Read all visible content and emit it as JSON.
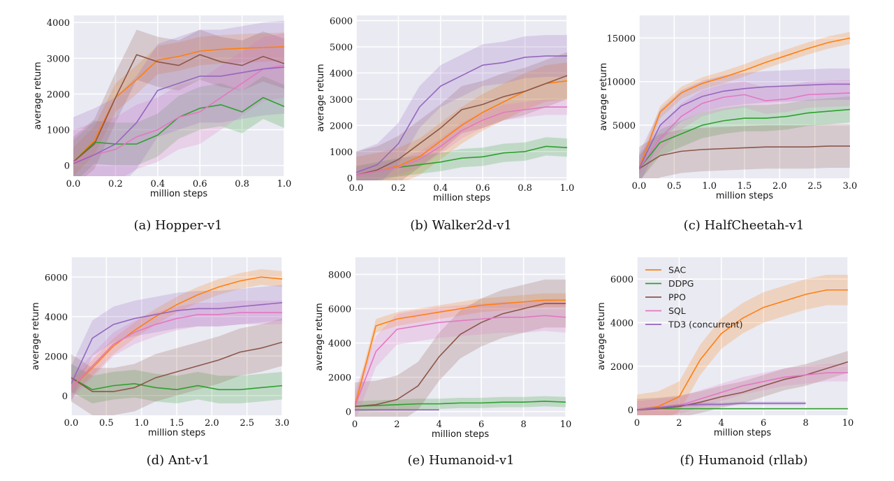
{
  "series_colors": {
    "SAC": "#ff7f0e",
    "DDPG": "#2ca02c",
    "PPO": "#8c564b",
    "SQL": "#e377c2",
    "TD3 (concurrent)": "#9467bd"
  },
  "plot_background": "#eaeaf2",
  "chart_data": [
    {
      "type": "line",
      "caption": "(a) Hopper-v1",
      "xlabel": "million steps",
      "ylabel": "average return",
      "xlim": [
        0,
        1
      ],
      "ylim": [
        -300,
        4200
      ],
      "xticks": [
        0.0,
        0.2,
        0.4,
        0.6,
        0.8,
        1.0
      ],
      "xtick_labels": [
        "0.0",
        "0.2",
        "0.4",
        "0.6",
        "0.8",
        "1.0"
      ],
      "yticks": [
        0,
        1000,
        2000,
        3000,
        4000
      ],
      "ytick_labels": [
        "0",
        "1000",
        "2000",
        "3000",
        "4000"
      ],
      "grid": true,
      "x": [
        0,
        0.1,
        0.2,
        0.3,
        0.4,
        0.5,
        0.6,
        0.7,
        0.8,
        0.9,
        1.0
      ],
      "series": [
        {
          "name": "SAC",
          "values": [
            100,
            700,
            1900,
            2400,
            2950,
            3050,
            3200,
            3250,
            3280,
            3300,
            3320
          ],
          "band": 400
        },
        {
          "name": "DDPG",
          "values": [
            100,
            650,
            600,
            600,
            850,
            1350,
            1600,
            1700,
            1500,
            1900,
            1650
          ],
          "band": 600
        },
        {
          "name": "PPO",
          "values": [
            100,
            600,
            1900,
            3100,
            2900,
            2800,
            3100,
            2900,
            2800,
            3050,
            2850
          ],
          "band": 700
        },
        {
          "name": "SQL",
          "values": [
            100,
            300,
            450,
            800,
            1000,
            1350,
            1500,
            1900,
            2300,
            2700,
            2800
          ],
          "band": 900
        },
        {
          "name": "TD3 (concurrent)",
          "values": [
            50,
            300,
            600,
            1200,
            2100,
            2300,
            2500,
            2500,
            2600,
            2700,
            2750
          ],
          "band": 1300
        }
      ]
    },
    {
      "type": "line",
      "caption": "(b) Walker2d-v1",
      "xlabel": "million steps",
      "ylabel": "average return",
      "xlim": [
        0,
        1
      ],
      "ylim": [
        -100,
        6200
      ],
      "xticks": [
        0.0,
        0.2,
        0.4,
        0.6,
        0.8,
        1.0
      ],
      "xtick_labels": [
        "0.0",
        "0.2",
        "0.4",
        "0.6",
        "0.8",
        "1.0"
      ],
      "yticks": [
        0,
        1000,
        2000,
        3000,
        4000,
        5000,
        6000
      ],
      "ytick_labels": [
        "0",
        "1000",
        "2000",
        "3000",
        "4000",
        "5000",
        "6000"
      ],
      "grid": true,
      "x": [
        0,
        0.1,
        0.2,
        0.3,
        0.4,
        0.5,
        0.6,
        0.7,
        0.8,
        0.9,
        1.0
      ],
      "series": [
        {
          "name": "SAC",
          "values": [
            100,
            250,
            450,
            800,
            1400,
            2000,
            2500,
            2900,
            3300,
            3600,
            3700
          ],
          "band": 700
        },
        {
          "name": "DDPG",
          "values": [
            100,
            250,
            400,
            500,
            600,
            750,
            800,
            950,
            1000,
            1200,
            1150
          ],
          "band": 350
        },
        {
          "name": "PPO",
          "values": [
            100,
            300,
            700,
            1300,
            1900,
            2600,
            2800,
            3100,
            3300,
            3600,
            3900
          ],
          "band": 900
        },
        {
          "name": "SQL",
          "values": [
            100,
            250,
            400,
            700,
            1200,
            1800,
            2200,
            2500,
            2600,
            2700,
            2700
          ],
          "band": 300
        },
        {
          "name": "TD3 (concurrent)",
          "values": [
            200,
            500,
            1300,
            2700,
            3500,
            3900,
            4300,
            4400,
            4600,
            4650,
            4650
          ],
          "band": 800
        }
      ]
    },
    {
      "type": "line",
      "caption": "(c) HalfCheetah-v1",
      "xlabel": "million steps",
      "ylabel": "average return",
      "xlim": [
        0,
        3
      ],
      "ylim": [
        -1100,
        17600
      ],
      "xticks": [
        0,
        0.5,
        1,
        1.5,
        2,
        2.5,
        3
      ],
      "xtick_labels": [
        "0.0",
        "0.5",
        "1.0",
        "1.5",
        "2.0",
        "2.5",
        "3.0"
      ],
      "yticks": [
        5000,
        10000,
        15000
      ],
      "ytick_labels": [
        "5000",
        "10000",
        "15000"
      ],
      "grid": true,
      "x": [
        0,
        0.3,
        0.6,
        0.9,
        1.2,
        1.5,
        1.8,
        2.1,
        2.4,
        2.7,
        3.0
      ],
      "series": [
        {
          "name": "SAC",
          "values": [
            0,
            6500,
            8700,
            9800,
            10500,
            11300,
            12200,
            13000,
            13800,
            14500,
            15000
          ],
          "band": 700
        },
        {
          "name": "DDPG",
          "values": [
            0,
            3000,
            4000,
            5000,
            5500,
            5800,
            5800,
            6000,
            6400,
            6600,
            6800
          ],
          "band": 1500
        },
        {
          "name": "PPO",
          "values": [
            0,
            1500,
            2000,
            2200,
            2300,
            2400,
            2500,
            2500,
            2500,
            2600,
            2600
          ],
          "band": 2500
        },
        {
          "name": "SQL",
          "values": [
            0,
            3500,
            6000,
            7500,
            8200,
            8500,
            7800,
            8000,
            8500,
            8600,
            8700
          ],
          "band": 1500
        },
        {
          "name": "TD3 (concurrent)",
          "values": [
            0,
            5000,
            7200,
            8300,
            8900,
            9200,
            9400,
            9500,
            9600,
            9700,
            9700
          ],
          "band": 1800
        }
      ]
    },
    {
      "type": "line",
      "caption": "(d) Ant-v1",
      "xlabel": "million steps",
      "ylabel": "average return",
      "xlim": [
        0,
        3
      ],
      "ylim": [
        -1000,
        7000
      ],
      "xticks": [
        0,
        0.5,
        1,
        1.5,
        2,
        2.5,
        3
      ],
      "xtick_labels": [
        "0.0",
        "0.5",
        "1.0",
        "1.5",
        "2.0",
        "2.5",
        "3.0"
      ],
      "yticks": [
        0,
        2000,
        4000,
        6000
      ],
      "ytick_labels": [
        "0",
        "2000",
        "4000",
        "6000"
      ],
      "grid": true,
      "x": [
        0,
        0.3,
        0.6,
        0.9,
        1.2,
        1.5,
        1.8,
        2.1,
        2.4,
        2.7,
        3.0
      ],
      "series": [
        {
          "name": "SAC",
          "values": [
            400,
            1400,
            2500,
            3300,
            4000,
            4600,
            5100,
            5500,
            5800,
            6000,
            5900
          ],
          "band": 400
        },
        {
          "name": "DDPG",
          "values": [
            900,
            300,
            500,
            600,
            400,
            300,
            500,
            300,
            300,
            400,
            500
          ],
          "band": 700
        },
        {
          "name": "PPO",
          "values": [
            900,
            200,
            200,
            400,
            900,
            1200,
            1500,
            1800,
            2200,
            2400,
            2700
          ],
          "band": 1200
        },
        {
          "name": "SQL",
          "values": [
            400,
            1500,
            2600,
            3200,
            3600,
            3900,
            4100,
            4100,
            4200,
            4200,
            4200
          ],
          "band": 600
        },
        {
          "name": "TD3 (concurrent)",
          "values": [
            600,
            2900,
            3600,
            3900,
            4100,
            4300,
            4400,
            4400,
            4500,
            4600,
            4700
          ],
          "band": 900
        }
      ]
    },
    {
      "type": "line",
      "caption": "(e) Humanoid-v1",
      "xlabel": "million steps",
      "ylabel": "average return",
      "xlim": [
        0,
        10
      ],
      "ylim": [
        -300,
        9000
      ],
      "xticks": [
        0,
        2,
        4,
        6,
        8,
        10
      ],
      "xtick_labels": [
        "0",
        "2",
        "4",
        "6",
        "8",
        "10"
      ],
      "yticks": [
        0,
        2000,
        4000,
        6000,
        8000
      ],
      "ytick_labels": [
        "0",
        "2000",
        "4000",
        "6000",
        "8000"
      ],
      "grid": true,
      "x": [
        0,
        1,
        2,
        3,
        4,
        5,
        6,
        7,
        8,
        9,
        10
      ],
      "series": [
        {
          "name": "SAC",
          "values": [
            300,
            5000,
            5400,
            5600,
            5800,
            6000,
            6200,
            6300,
            6400,
            6500,
            6500
          ],
          "band": 400
        },
        {
          "name": "DDPG",
          "values": [
            300,
            350,
            400,
            450,
            450,
            500,
            500,
            550,
            550,
            600,
            550
          ],
          "band": 300
        },
        {
          "name": "PPO",
          "values": [
            300,
            400,
            700,
            1500,
            3200,
            4500,
            5200,
            5700,
            6000,
            6300,
            6300
          ],
          "band": 1400
        },
        {
          "name": "SQL",
          "values": [
            300,
            3500,
            4800,
            5000,
            5200,
            5300,
            5400,
            5500,
            5500,
            5600,
            5500
          ],
          "band": 900
        },
        {
          "name": "TD3 (concurrent)",
          "values": [
            100,
            100,
            100,
            100,
            100,
            null,
            null,
            null,
            null,
            null,
            null
          ],
          "band": 50
        }
      ]
    },
    {
      "type": "line",
      "caption": "(f) Humanoid (rllab)",
      "xlabel": "million steps",
      "ylabel": "average return",
      "xlim": [
        0,
        10
      ],
      "ylim": [
        -250,
        7000
      ],
      "xticks": [
        0,
        2,
        4,
        6,
        8,
        10
      ],
      "xtick_labels": [
        "0",
        "2",
        "4",
        "6",
        "8",
        "10"
      ],
      "yticks": [
        0,
        2000,
        4000,
        6000
      ],
      "ytick_labels": [
        "0",
        "2000",
        "4000",
        "6000"
      ],
      "grid": true,
      "legend": "top-left",
      "x": [
        0,
        1,
        2,
        3,
        4,
        5,
        6,
        7,
        8,
        9,
        10
      ],
      "series": [
        {
          "name": "SAC",
          "values": [
            0,
            150,
            600,
            2300,
            3500,
            4200,
            4700,
            5000,
            5300,
            5500,
            5500
          ],
          "band": 700
        },
        {
          "name": "DDPG",
          "values": [
            0,
            50,
            50,
            50,
            50,
            50,
            50,
            50,
            50,
            50,
            50
          ],
          "band": 30
        },
        {
          "name": "PPO",
          "values": [
            0,
            50,
            150,
            350,
            600,
            800,
            1100,
            1400,
            1600,
            1900,
            2200
          ],
          "band": 500
        },
        {
          "name": "SQL",
          "values": [
            0,
            100,
            200,
            500,
            800,
            1100,
            1300,
            1500,
            1600,
            1700,
            1700
          ],
          "band": 400
        },
        {
          "name": "TD3 (concurrent)",
          "values": [
            0,
            100,
            200,
            250,
            250,
            300,
            300,
            300,
            300,
            null,
            null
          ],
          "band": 80
        }
      ]
    }
  ]
}
